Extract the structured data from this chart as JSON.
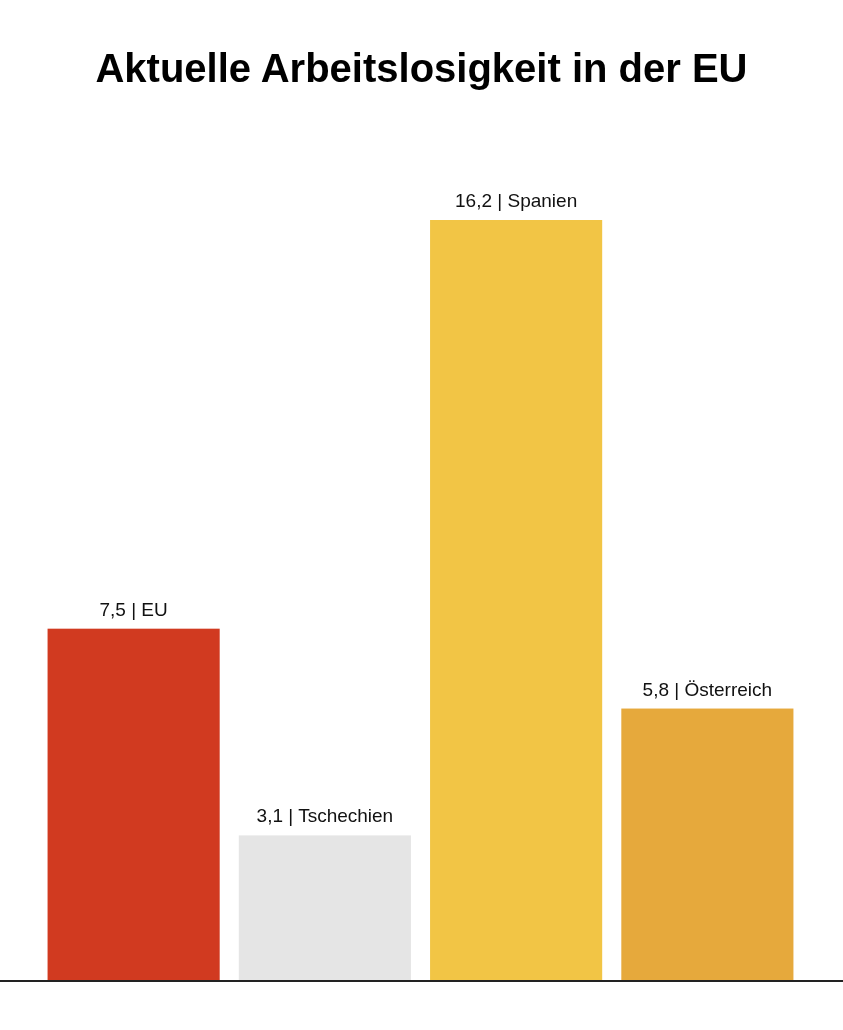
{
  "chart_data": {
    "type": "bar",
    "title": "Aktuelle Arbeitslosigkeit in der EU",
    "categories": [
      null,
      null,
      null,
      null
    ],
    "values": [
      7.5,
      3.1,
      16.2,
      5.8
    ],
    "value_labels": [
      "7,5 | EU",
      "3,1 | Tschechien",
      "16,2 | Spanien",
      "5,8 | Österreich"
    ],
    "colors": [
      "#d13a20",
      "#e5e5e5",
      "#f2c545",
      "#e6a93c"
    ]
  }
}
